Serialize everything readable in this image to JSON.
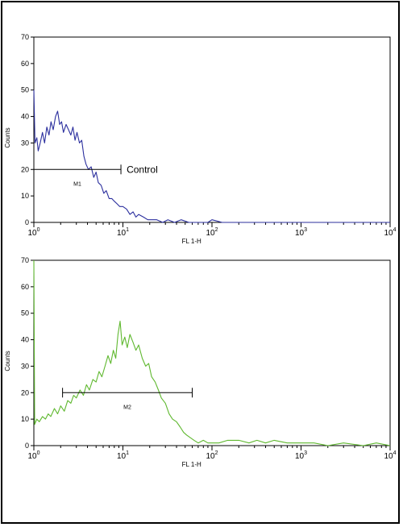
{
  "chart_data": [
    {
      "type": "histogram",
      "xlabel": "FL 1-H",
      "ylabel": "Counts",
      "x_scale": "log",
      "xlim": [
        1,
        10000
      ],
      "ylim": [
        0,
        70
      ],
      "x_ticks": [
        {
          "value": 1,
          "base": "10",
          "exp": "0"
        },
        {
          "value": 10,
          "base": "10",
          "exp": "1"
        },
        {
          "value": 100,
          "base": "10",
          "exp": "2"
        },
        {
          "value": 1000,
          "base": "10",
          "exp": "3"
        },
        {
          "value": 10000,
          "base": "10",
          "exp": "4"
        }
      ],
      "y_ticks": [
        "0",
        "10",
        "20",
        "30",
        "40",
        "50",
        "60",
        "70"
      ],
      "series_color": "#2b2f9e",
      "series": [
        {
          "points": [
            [
              1.0,
              50
            ],
            [
              1.03,
              30
            ],
            [
              1.08,
              32
            ],
            [
              1.12,
              27
            ],
            [
              1.18,
              30
            ],
            [
              1.25,
              34
            ],
            [
              1.32,
              30
            ],
            [
              1.4,
              36
            ],
            [
              1.48,
              33
            ],
            [
              1.56,
              38
            ],
            [
              1.65,
              35
            ],
            [
              1.75,
              40
            ],
            [
              1.85,
              42
            ],
            [
              1.95,
              37
            ],
            [
              2.05,
              38
            ],
            [
              2.15,
              34
            ],
            [
              2.3,
              37
            ],
            [
              2.45,
              35
            ],
            [
              2.6,
              33
            ],
            [
              2.75,
              36
            ],
            [
              2.9,
              31
            ],
            [
              3.05,
              34
            ],
            [
              3.25,
              30
            ],
            [
              3.45,
              31
            ],
            [
              3.65,
              25
            ],
            [
              3.85,
              22
            ],
            [
              4.1,
              20
            ],
            [
              4.4,
              21
            ],
            [
              4.7,
              17
            ],
            [
              5.0,
              19
            ],
            [
              5.3,
              15
            ],
            [
              5.7,
              14
            ],
            [
              6.1,
              11
            ],
            [
              6.5,
              12
            ],
            [
              7.0,
              9
            ],
            [
              7.5,
              9
            ],
            [
              8.0,
              8
            ],
            [
              8.6,
              7
            ],
            [
              9.2,
              6
            ],
            [
              10,
              6
            ],
            [
              11,
              5
            ],
            [
              12,
              3
            ],
            [
              13,
              4
            ],
            [
              14,
              2
            ],
            [
              15,
              3
            ],
            [
              17,
              2
            ],
            [
              19,
              1
            ],
            [
              21,
              1
            ],
            [
              24,
              1
            ],
            [
              28,
              0
            ],
            [
              32,
              1
            ],
            [
              38,
              0
            ],
            [
              45,
              1
            ],
            [
              55,
              0
            ],
            [
              70,
              0
            ],
            [
              90,
              0
            ],
            [
              100,
              1
            ],
            [
              130,
              0
            ],
            [
              200,
              0
            ],
            [
              500,
              0
            ],
            [
              1000,
              0
            ],
            [
              10000,
              0
            ]
          ]
        }
      ],
      "markers": [
        {
          "label": "M1",
          "x_start": 1.0,
          "x_end": 9.5,
          "y": 20
        }
      ],
      "annotations": [
        {
          "text": "Control",
          "x": 11,
          "y": 20
        }
      ]
    },
    {
      "type": "histogram",
      "xlabel": "FL 1-H",
      "ylabel": "Counts",
      "x_scale": "log",
      "xlim": [
        1,
        10000
      ],
      "ylim": [
        0,
        70
      ],
      "x_ticks": [
        {
          "value": 1,
          "base": "10",
          "exp": "0"
        },
        {
          "value": 10,
          "base": "10",
          "exp": "1"
        },
        {
          "value": 100,
          "base": "10",
          "exp": "2"
        },
        {
          "value": 1000,
          "base": "10",
          "exp": "3"
        },
        {
          "value": 10000,
          "base": "10",
          "exp": "4"
        }
      ],
      "y_ticks": [
        "0",
        "10",
        "20",
        "30",
        "40",
        "50",
        "60",
        "70"
      ],
      "series_color": "#5fb82f",
      "series": [
        {
          "points": [
            [
              1.0,
              70
            ],
            [
              1.02,
              8
            ],
            [
              1.08,
              10
            ],
            [
              1.15,
              9
            ],
            [
              1.25,
              11
            ],
            [
              1.35,
              10
            ],
            [
              1.45,
              12
            ],
            [
              1.55,
              11
            ],
            [
              1.7,
              14
            ],
            [
              1.85,
              12
            ],
            [
              2.0,
              15
            ],
            [
              2.2,
              13
            ],
            [
              2.4,
              17
            ],
            [
              2.6,
              16
            ],
            [
              2.8,
              19
            ],
            [
              3.0,
              18
            ],
            [
              3.3,
              21
            ],
            [
              3.6,
              19
            ],
            [
              3.9,
              23
            ],
            [
              4.2,
              21
            ],
            [
              4.6,
              25
            ],
            [
              5.0,
              24
            ],
            [
              5.4,
              28
            ],
            [
              5.8,
              26
            ],
            [
              6.3,
              30
            ],
            [
              6.8,
              34
            ],
            [
              7.3,
              31
            ],
            [
              7.8,
              36
            ],
            [
              8.3,
              33
            ],
            [
              8.8,
              42
            ],
            [
              9.3,
              47
            ],
            [
              9.8,
              38
            ],
            [
              10.5,
              41
            ],
            [
              11.2,
              37
            ],
            [
              12,
              42
            ],
            [
              13,
              39
            ],
            [
              14,
              36
            ],
            [
              15,
              38
            ],
            [
              16.5,
              33
            ],
            [
              18,
              30
            ],
            [
              19.5,
              31
            ],
            [
              21,
              26
            ],
            [
              23,
              24
            ],
            [
              25,
              21
            ],
            [
              27,
              18
            ],
            [
              30,
              16
            ],
            [
              33,
              12
            ],
            [
              36,
              10
            ],
            [
              40,
              9
            ],
            [
              44,
              7
            ],
            [
              48,
              5
            ],
            [
              52,
              4
            ],
            [
              57,
              3
            ],
            [
              63,
              2
            ],
            [
              70,
              1
            ],
            [
              80,
              2
            ],
            [
              90,
              1
            ],
            [
              100,
              1
            ],
            [
              120,
              1
            ],
            [
              150,
              2
            ],
            [
              200,
              2
            ],
            [
              260,
              1
            ],
            [
              320,
              2
            ],
            [
              400,
              1
            ],
            [
              500,
              2
            ],
            [
              700,
              1
            ],
            [
              1000,
              1
            ],
            [
              1400,
              1
            ],
            [
              2000,
              0
            ],
            [
              3000,
              1
            ],
            [
              5000,
              0
            ],
            [
              7000,
              1
            ],
            [
              10000,
              0
            ]
          ]
        }
      ],
      "markers": [
        {
          "label": "M2",
          "x_start": 2.1,
          "x_end": 60,
          "y": 20
        }
      ]
    }
  ]
}
